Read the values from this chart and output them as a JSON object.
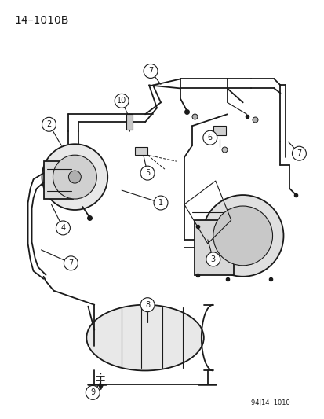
{
  "title": "14–1010B",
  "footer": "94J14  1010",
  "bg_color": "#ffffff",
  "line_color": "#1a1a1a",
  "title_fontsize": 10,
  "footer_fontsize": 6,
  "label_fontsize": 7
}
